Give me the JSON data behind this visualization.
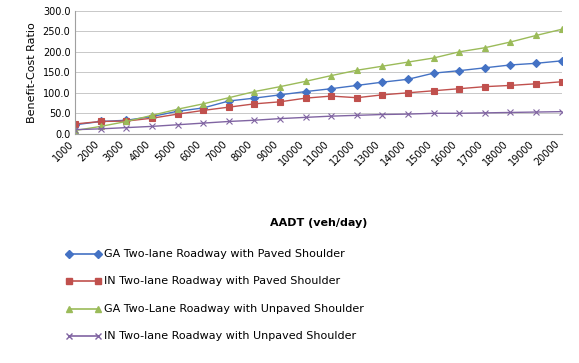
{
  "x": [
    1000,
    2000,
    3000,
    4000,
    5000,
    6000,
    7000,
    8000,
    9000,
    10000,
    11000,
    12000,
    13000,
    14000,
    15000,
    16000,
    17000,
    18000,
    19000,
    20000
  ],
  "ga_paved": [
    22,
    30,
    33,
    42,
    55,
    63,
    80,
    87,
    95,
    103,
    110,
    118,
    126,
    133,
    148,
    154,
    161,
    168,
    172,
    178
  ],
  "in_paved": [
    24,
    30,
    31,
    38,
    48,
    57,
    65,
    73,
    78,
    87,
    92,
    88,
    95,
    100,
    105,
    110,
    115,
    118,
    122,
    127
  ],
  "ga_unpaved": [
    8,
    18,
    30,
    45,
    60,
    73,
    88,
    103,
    115,
    128,
    142,
    155,
    165,
    175,
    185,
    200,
    210,
    224,
    240,
    255
  ],
  "in_unpaved": [
    10,
    12,
    15,
    18,
    22,
    26,
    30,
    33,
    37,
    40,
    43,
    45,
    47,
    48,
    50,
    50,
    51,
    52,
    53,
    54
  ],
  "series": [
    {
      "label": "GA Two-lane Roadway with Paved Shoulder",
      "color": "#4472C4",
      "marker": "D",
      "markersize": 4
    },
    {
      "label": "IN Two-lane Roadway with Paved Shoulder",
      "color": "#C0504D",
      "marker": "s",
      "markersize": 4
    },
    {
      "label": "GA Two-Lane Roadway with Unpaved Shoulder",
      "color": "#9BBB59",
      "marker": "^",
      "markersize": 5
    },
    {
      "label": "IN Two-lane Roadway with Unpaved Shoulder",
      "color": "#8064A2",
      "marker": "x",
      "markersize": 5
    }
  ],
  "xlabel": "AADT (veh/day)",
  "ylabel": "Benefit-Cost Ratio",
  "ylim": [
    0,
    300
  ],
  "yticks": [
    0.0,
    50.0,
    100.0,
    150.0,
    200.0,
    250.0,
    300.0
  ],
  "xlim": [
    1000,
    20000
  ],
  "xticks": [
    1000,
    2000,
    3000,
    4000,
    5000,
    6000,
    7000,
    8000,
    9000,
    10000,
    11000,
    12000,
    13000,
    14000,
    15000,
    16000,
    17000,
    18000,
    19000,
    20000
  ],
  "grid_color": "#C8C8C8",
  "bg_color": "#FFFFFF",
  "axis_fontsize": 8,
  "tick_fontsize": 7,
  "legend_fontsize": 8
}
